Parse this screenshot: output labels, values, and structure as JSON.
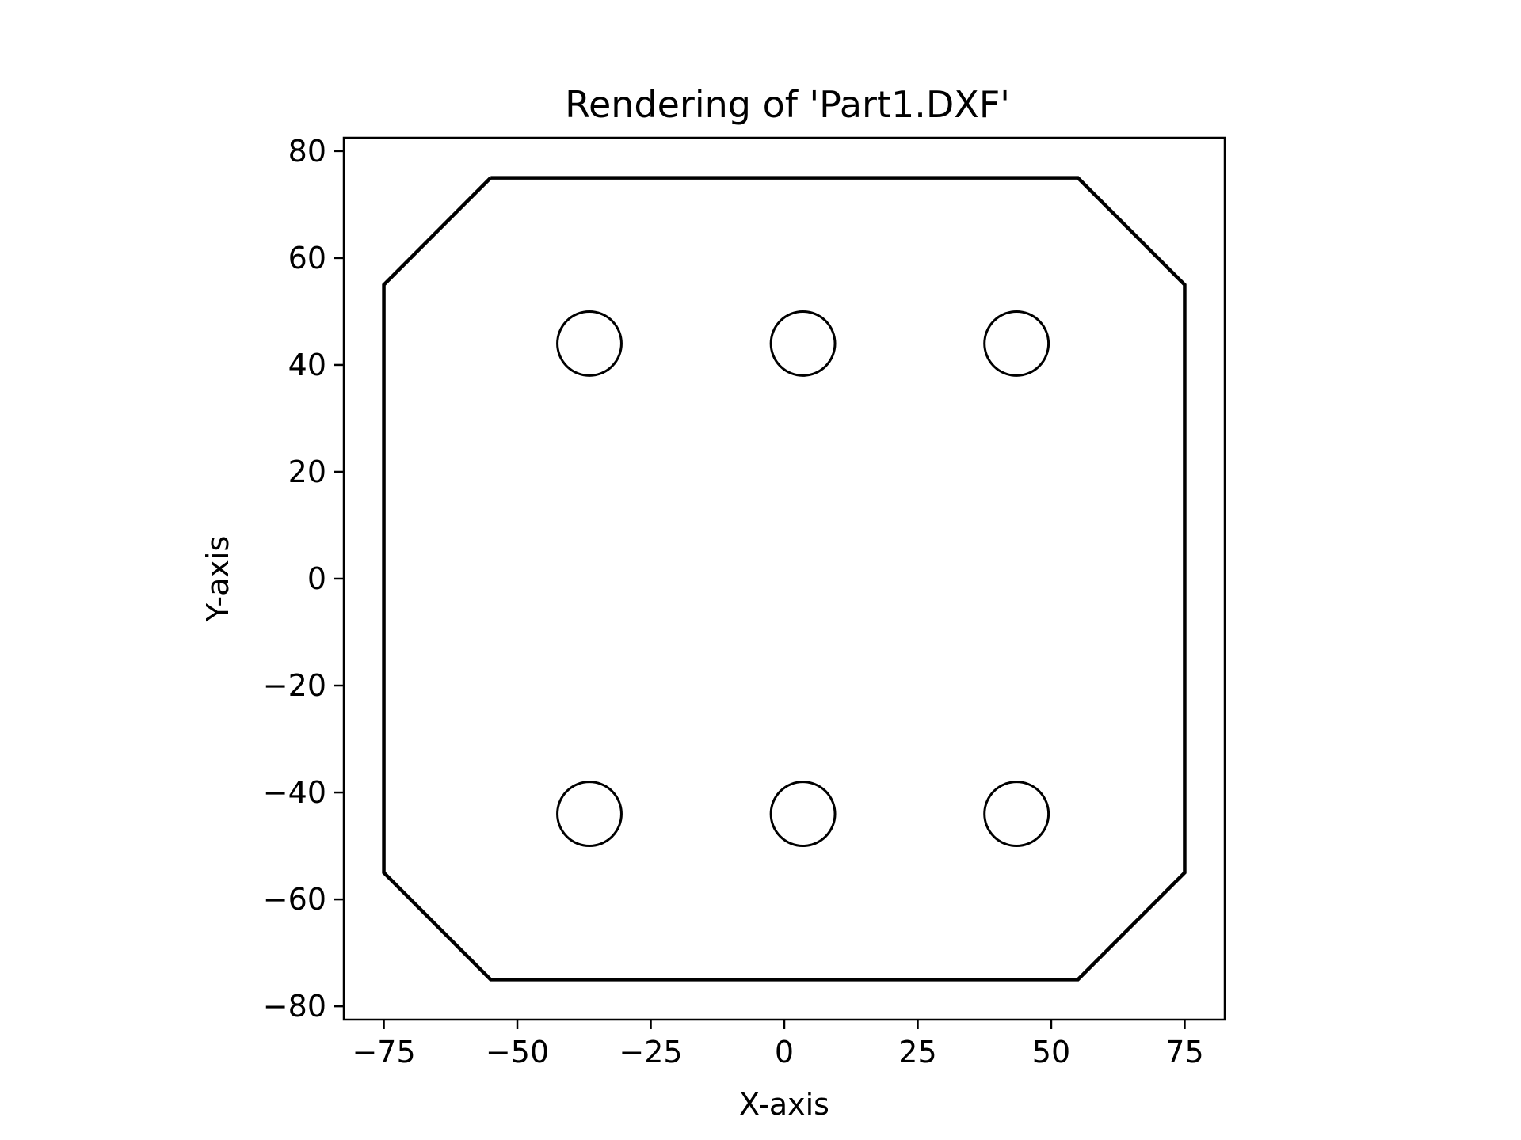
{
  "chart_data": {
    "type": "line",
    "title": "Rendering of 'Part1.DXF'",
    "xlabel": "X-axis",
    "ylabel": "Y-axis",
    "xlim": [
      -82.5,
      82.5
    ],
    "ylim": [
      -82.5,
      82.5
    ],
    "x_ticks": [
      -75,
      -50,
      -25,
      0,
      25,
      50,
      75
    ],
    "x_tick_labels": [
      "−75",
      "−50",
      "−25",
      "0",
      "25",
      "50",
      "75"
    ],
    "y_ticks": [
      80,
      60,
      40,
      20,
      0,
      -20,
      -40,
      -60,
      -80
    ],
    "y_tick_labels": [
      "80",
      "60",
      "40",
      "20",
      "0",
      "−20",
      "−40",
      "−60",
      "−80"
    ],
    "grid": false,
    "line_color": "#000000",
    "outline": {
      "name": "outline",
      "points": [
        [
          -55,
          75
        ],
        [
          55,
          75
        ],
        [
          75,
          55
        ],
        [
          75,
          -55
        ],
        [
          55,
          -75
        ],
        [
          -55,
          -75
        ],
        [
          -75,
          -55
        ],
        [
          -75,
          55
        ],
        [
          -55,
          75
        ]
      ]
    },
    "holes": [
      {
        "cx": -36.5,
        "cy": 44,
        "r": 6
      },
      {
        "cx": 3.5,
        "cy": 44,
        "r": 6
      },
      {
        "cx": 43.5,
        "cy": 44,
        "r": 6
      },
      {
        "cx": -36.5,
        "cy": -44,
        "r": 6
      },
      {
        "cx": 3.5,
        "cy": -44,
        "r": 6
      },
      {
        "cx": 43.5,
        "cy": -44,
        "r": 6
      }
    ]
  }
}
